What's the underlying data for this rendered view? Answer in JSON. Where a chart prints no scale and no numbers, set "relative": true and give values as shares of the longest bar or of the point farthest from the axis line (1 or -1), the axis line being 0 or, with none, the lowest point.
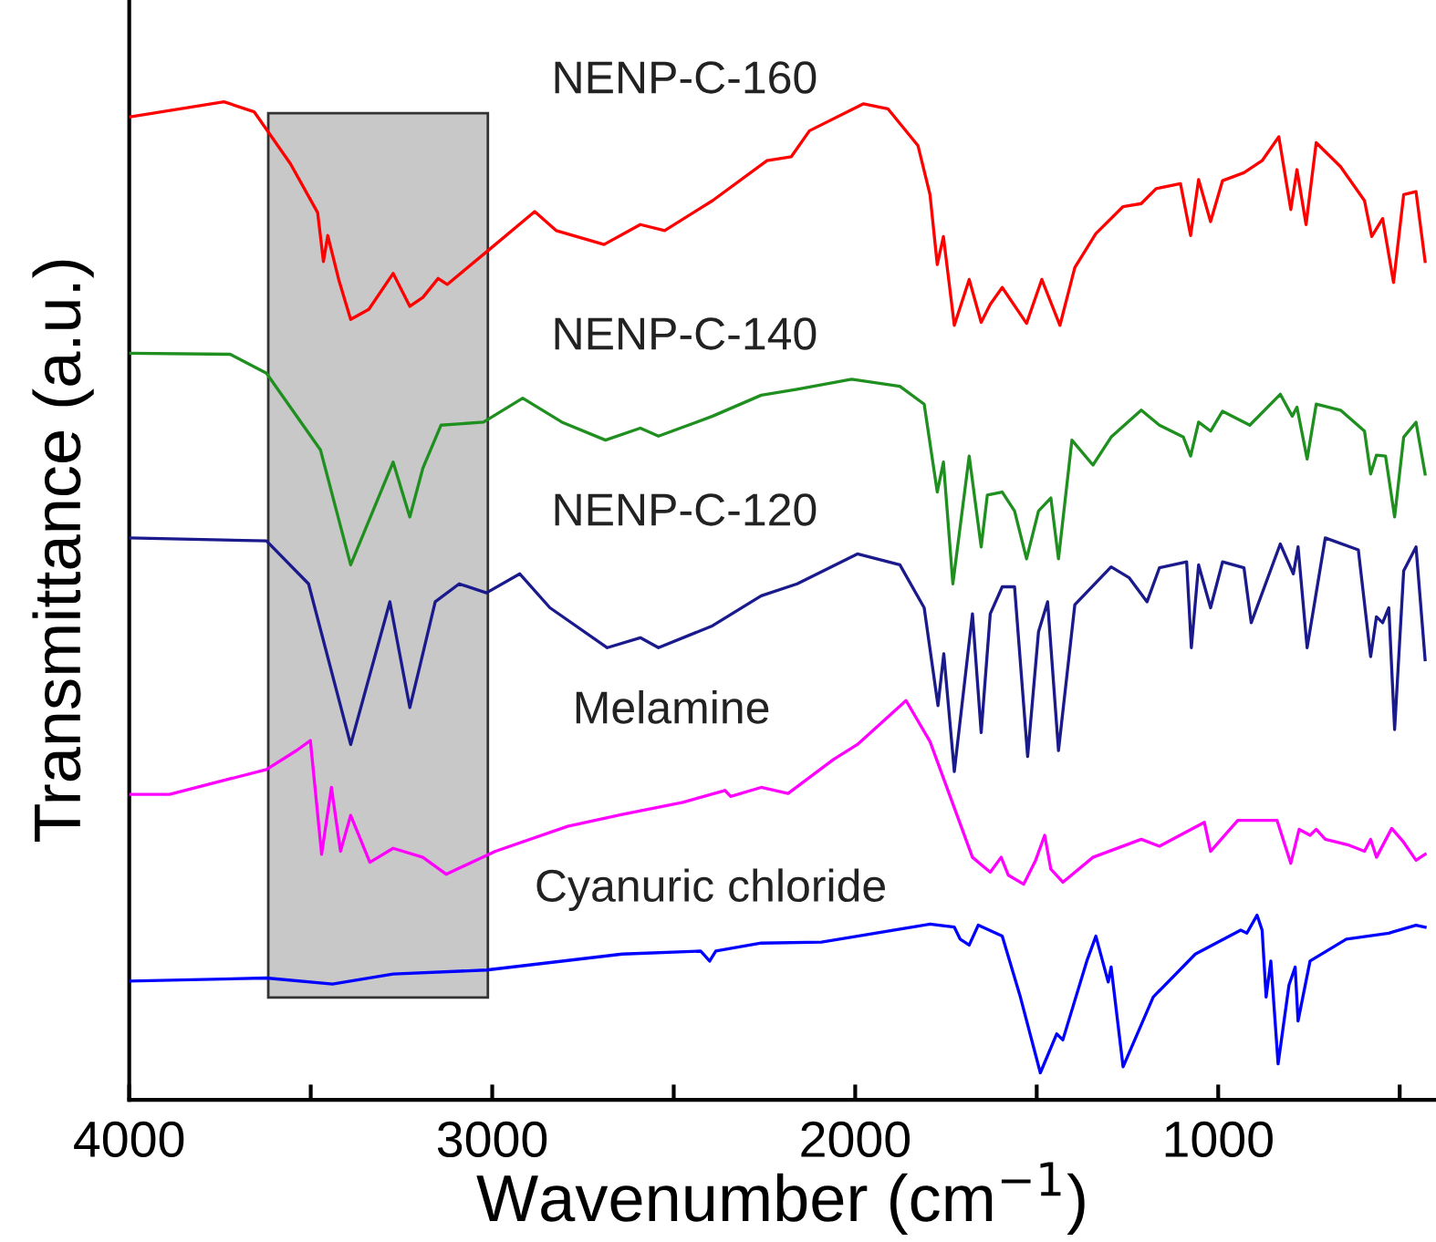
{
  "chart_data": {
    "type": "line",
    "relative": true,
    "xlabel": "Wavenumber (cm$^{−1}$)",
    "ylabel": "Transmittance (a.u.)",
    "xlim": [
      4000,
      400
    ],
    "xticks": [
      4000,
      {
        "value": 3500,
        "label": null
      },
      3000,
      {
        "value": 2500,
        "label": null
      },
      2000,
      {
        "value": 1500,
        "label": null
      },
      1000,
      {
        "value": 500,
        "label": null
      }
    ],
    "tick_labels": "x",
    "bands": [
      {
        "axis": "x",
        "from": 3617,
        "to": 3012,
        "label": null,
        "color": "#c8c8c8"
      }
    ],
    "series": [
      {
        "name": "NENP-C-160",
        "color": "#ff0000",
        "x": [
          3997,
          3739,
          3656,
          3556,
          3481,
          3465,
          3453,
          3423,
          3390,
          3340,
          3273,
          3227,
          3191,
          3149,
          3124,
          3008,
          2883,
          2824,
          2692,
          2592,
          2525,
          2393,
          2243,
          2176,
          2126,
          1977,
          1910,
          1827,
          1794,
          1774,
          1757,
          1727,
          1686,
          1653,
          1628,
          1595,
          1528,
          1486,
          1436,
          1395,
          1337,
          1262,
          1212,
          1171,
          1104,
          1076,
          1054,
          1021,
          988,
          929,
          879,
          833,
          800,
          783,
          758,
          730,
          663,
          597,
          577,
          547,
          517,
          489,
          455,
          430
        ],
        "values": [
          0.985,
          1.0,
          0.99,
          0.938,
          0.889,
          0.84,
          0.866,
          0.822,
          0.782,
          0.792,
          0.828,
          0.795,
          0.804,
          0.823,
          0.817,
          0.852,
          0.89,
          0.871,
          0.857,
          0.877,
          0.871,
          0.901,
          0.941,
          0.945,
          0.971,
          0.998,
          0.993,
          0.956,
          0.907,
          0.837,
          0.865,
          0.776,
          0.822,
          0.779,
          0.797,
          0.814,
          0.778,
          0.822,
          0.776,
          0.834,
          0.868,
          0.895,
          0.898,
          0.913,
          0.918,
          0.866,
          0.922,
          0.88,
          0.921,
          0.929,
          0.941,
          0.965,
          0.892,
          0.932,
          0.877,
          0.959,
          0.935,
          0.901,
          0.865,
          0.883,
          0.819,
          0.907,
          0.91,
          0.84
        ]
      },
      {
        "name": "NENP-C-140",
        "color": "#1f8f1f",
        "x": [
          3997,
          3722,
          3622,
          3473,
          3390,
          3273,
          3227,
          3191,
          3141,
          3024,
          2916,
          2808,
          2688,
          2592,
          2542,
          2393,
          2259,
          2160,
          2010,
          1877,
          1810,
          1774,
          1757,
          1731,
          1686,
          1653,
          1636,
          1595,
          1561,
          1528,
          1495,
          1461,
          1440,
          1403,
          1345,
          1295,
          1212,
          1162,
          1096,
          1076,
          1054,
          1021,
          988,
          913,
          829,
          796,
          783,
          755,
          730,
          663,
          597,
          580,
          564,
          539,
          514,
          489,
          455,
          430
        ],
        "values": [
          0.748,
          0.747,
          0.728,
          0.651,
          0.536,
          0.639,
          0.584,
          0.633,
          0.676,
          0.679,
          0.703,
          0.679,
          0.661,
          0.673,
          0.665,
          0.685,
          0.706,
          0.712,
          0.722,
          0.715,
          0.697,
          0.609,
          0.639,
          0.517,
          0.645,
          0.554,
          0.606,
          0.609,
          0.59,
          0.542,
          0.59,
          0.603,
          0.542,
          0.661,
          0.636,
          0.664,
          0.691,
          0.676,
          0.664,
          0.645,
          0.679,
          0.67,
          0.69,
          0.676,
          0.707,
          0.685,
          0.694,
          0.642,
          0.697,
          0.691,
          0.67,
          0.627,
          0.646,
          0.645,
          0.584,
          0.664,
          0.679,
          0.627
        ]
      },
      {
        "name": "NENP-C-120",
        "color": "#1a1a8c",
        "x": [
          3997,
          3622,
          3506,
          3390,
          3282,
          3227,
          3199,
          3157,
          3091,
          3016,
          2924,
          2841,
          2683,
          2592,
          2542,
          2393,
          2259,
          2160,
          1994,
          1877,
          1810,
          1772,
          1756,
          1727,
          1677,
          1653,
          1628,
          1595,
          1561,
          1525,
          1495,
          1470,
          1440,
          1395,
          1295,
          1245,
          1196,
          1162,
          1087,
          1074,
          1054,
          1021,
          988,
          929,
          909,
          829,
          793,
          780,
          755,
          705,
          614,
          580,
          564,
          547,
          530,
          514,
          489,
          455,
          430
        ],
        "values": [
          0.563,
          0.56,
          0.517,
          0.356,
          0.499,
          0.393,
          0.435,
          0.499,
          0.517,
          0.508,
          0.527,
          0.493,
          0.453,
          0.463,
          0.453,
          0.475,
          0.505,
          0.517,
          0.547,
          0.536,
          0.493,
          0.395,
          0.447,
          0.329,
          0.487,
          0.368,
          0.487,
          0.514,
          0.514,
          0.344,
          0.469,
          0.499,
          0.35,
          0.496,
          0.534,
          0.523,
          0.499,
          0.533,
          0.539,
          0.453,
          0.536,
          0.493,
          0.539,
          0.533,
          0.478,
          0.557,
          0.527,
          0.554,
          0.453,
          0.563,
          0.551,
          0.444,
          0.484,
          0.478,
          0.493,
          0.371,
          0.53,
          0.554,
          0.441
        ]
      },
      {
        "name": "Melamine",
        "color": "#ff00ff",
        "x": [
          3997,
          3889,
          3622,
          3539,
          3501,
          3470,
          3443,
          3418,
          3390,
          3337,
          3273,
          3191,
          3127,
          2991,
          2792,
          2642,
          2475,
          2359,
          2343,
          2259,
          2185,
          2060,
          1994,
          1860,
          1794,
          1677,
          1628,
          1598,
          1578,
          1536,
          1503,
          1478,
          1461,
          1428,
          1345,
          1212,
          1162,
          1038,
          1021,
          946,
          838,
          800,
          777,
          747,
          730,
          705,
          639,
          597,
          580,
          564,
          522,
          489,
          455,
          430
        ],
        "values": [
          0.306,
          0.306,
          0.331,
          0.35,
          0.36,
          0.246,
          0.313,
          0.249,
          0.285,
          0.238,
          0.252,
          0.243,
          0.226,
          0.249,
          0.274,
          0.286,
          0.298,
          0.31,
          0.304,
          0.313,
          0.307,
          0.341,
          0.356,
          0.4,
          0.359,
          0.243,
          0.228,
          0.243,
          0.225,
          0.216,
          0.24,
          0.265,
          0.231,
          0.218,
          0.243,
          0.261,
          0.254,
          0.278,
          0.249,
          0.28,
          0.28,
          0.237,
          0.271,
          0.265,
          0.271,
          0.261,
          0.255,
          0.249,
          0.261,
          0.243,
          0.272,
          0.258,
          0.24,
          0.246
        ]
      },
      {
        "name": "Cyanuric chloride",
        "color": "#0000ff",
        "x": [
          3997,
          3622,
          3440,
          3273,
          3016,
          2642,
          2426,
          2401,
          2384,
          2259,
          2093,
          1994,
          1794,
          1727,
          1711,
          1686,
          1661,
          1595,
          1545,
          1490,
          1445,
          1428,
          1362,
          1337,
          1303,
          1295,
          1262,
          1179,
          1063,
          938,
          921,
          893,
          879,
          868,
          855,
          835,
          805,
          788,
          780,
          747,
          647,
          530,
          455,
          430
        ],
        "values": [
          0.119,
          0.122,
          0.116,
          0.126,
          0.13,
          0.146,
          0.149,
          0.139,
          0.149,
          0.157,
          0.158,
          0.164,
          0.176,
          0.173,
          0.161,
          0.155,
          0.175,
          0.164,
          0.103,
          0.027,
          0.066,
          0.06,
          0.139,
          0.164,
          0.118,
          0.133,
          0.033,
          0.103,
          0.146,
          0.17,
          0.167,
          0.185,
          0.17,
          0.103,
          0.139,
          0.036,
          0.115,
          0.133,
          0.079,
          0.139,
          0.161,
          0.167,
          0.175,
          0.173
        ]
      }
    ]
  }
}
